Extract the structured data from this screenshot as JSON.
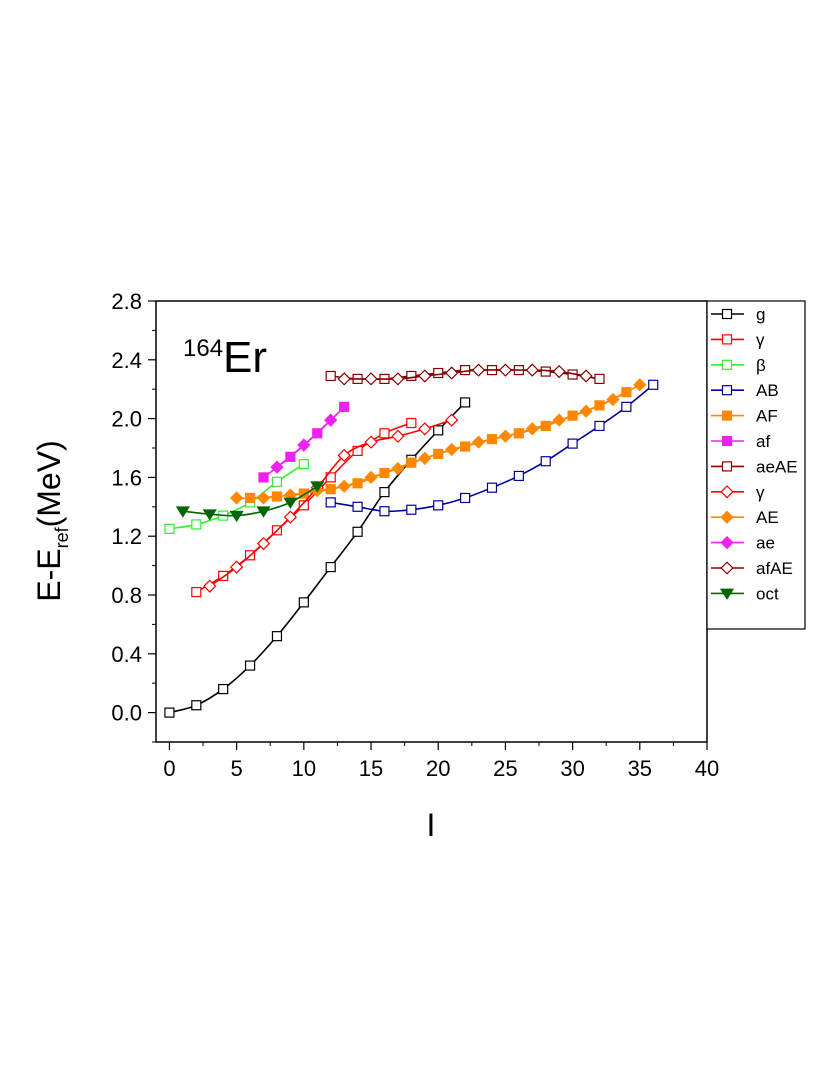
{
  "chart_data": {
    "type": "line",
    "title": "",
    "annotation": {
      "mass": "164",
      "element": "Er"
    },
    "xlabel": "I",
    "ylabel": {
      "main": "E-E",
      "sub": "ref",
      "unit": "(MeV)"
    },
    "xlim": [
      -1,
      40
    ],
    "ylim": [
      -0.2,
      2.8
    ],
    "xticks": [
      0,
      5,
      10,
      15,
      20,
      25,
      30,
      35,
      40
    ],
    "yticks": [
      0.0,
      0.4,
      0.8,
      1.2,
      1.6,
      2.0,
      2.4,
      2.8
    ],
    "xtick_labels": [
      "0",
      "5",
      "10",
      "15",
      "20",
      "25",
      "30",
      "35",
      "40"
    ],
    "ytick_labels": [
      "0.0",
      "0.4",
      "0.8",
      "1.2",
      "1.6",
      "2.0",
      "2.4",
      "2.8"
    ],
    "legend_position": "right",
    "series": [
      {
        "name": "g",
        "color": "#000000",
        "marker": "square-open",
        "x": [
          0,
          2,
          4,
          6,
          8,
          10,
          12,
          14,
          16,
          18,
          20,
          22
        ],
        "y": [
          0.0,
          0.05,
          0.16,
          0.32,
          0.52,
          0.75,
          0.99,
          1.23,
          1.5,
          1.72,
          1.92,
          2.11
        ]
      },
      {
        "name": "γ",
        "color": "#ff0000",
        "marker": "square-open",
        "x": [
          2,
          4,
          6,
          8,
          10,
          12,
          14,
          16,
          18
        ],
        "y": [
          0.82,
          0.93,
          1.07,
          1.24,
          1.41,
          1.6,
          1.78,
          1.9,
          1.97
        ]
      },
      {
        "name": "β",
        "color": "#33ee33",
        "marker": "square-open",
        "x": [
          0,
          2,
          4,
          6,
          8,
          10
        ],
        "y": [
          1.25,
          1.28,
          1.34,
          1.43,
          1.57,
          1.69
        ]
      },
      {
        "name": "AB",
        "color": "#000099",
        "marker": "square-open",
        "x": [
          12,
          14,
          16,
          18,
          20,
          22,
          24,
          26,
          28,
          30,
          32,
          34,
          36
        ],
        "y": [
          1.43,
          1.4,
          1.37,
          1.38,
          1.41,
          1.46,
          1.53,
          1.61,
          1.71,
          1.83,
          1.95,
          2.08,
          2.23
        ]
      },
      {
        "name": "AF",
        "color": "#ff8800",
        "marker": "square-filled",
        "x": [
          6,
          8,
          10,
          12,
          14,
          16,
          18,
          20,
          22,
          24,
          26,
          28,
          30,
          32,
          34
        ],
        "y": [
          1.46,
          1.47,
          1.49,
          1.52,
          1.56,
          1.63,
          1.7,
          1.76,
          1.81,
          1.86,
          1.9,
          1.95,
          2.02,
          2.09,
          2.18
        ]
      },
      {
        "name": "af",
        "color": "#ee22ee",
        "marker": "square-filled",
        "x": [
          7,
          9,
          11,
          13
        ],
        "y": [
          1.6,
          1.74,
          1.9,
          2.08
        ]
      },
      {
        "name": "aeAE",
        "color": "#880000",
        "marker": "square-open",
        "x": [
          12,
          14,
          16,
          18,
          20,
          22,
          24,
          26,
          28,
          30,
          32
        ],
        "y": [
          2.29,
          2.27,
          2.27,
          2.29,
          2.31,
          2.33,
          2.33,
          2.33,
          2.32,
          2.3,
          2.27
        ]
      },
      {
        "name": "γ",
        "color": "#ff0000",
        "marker": "diamond-open",
        "x": [
          3,
          5,
          7,
          9,
          11,
          13,
          15,
          17,
          19,
          21
        ],
        "y": [
          0.86,
          0.99,
          1.15,
          1.33,
          1.53,
          1.75,
          1.84,
          1.88,
          1.93,
          1.99
        ]
      },
      {
        "name": "AE",
        "color": "#ff8800",
        "marker": "diamond-filled",
        "x": [
          5,
          7,
          9,
          11,
          13,
          15,
          17,
          19,
          21,
          23,
          25,
          27,
          29,
          31,
          33,
          35
        ],
        "y": [
          1.46,
          1.46,
          1.48,
          1.51,
          1.54,
          1.6,
          1.66,
          1.73,
          1.79,
          1.84,
          1.88,
          1.93,
          1.99,
          2.05,
          2.13,
          2.23
        ]
      },
      {
        "name": "ae",
        "color": "#ee22ee",
        "marker": "diamond-filled",
        "x": [
          8,
          10,
          12
        ],
        "y": [
          1.67,
          1.82,
          1.99
        ]
      },
      {
        "name": "afAE",
        "color": "#880000",
        "marker": "diamond-open",
        "x": [
          13,
          15,
          17,
          19,
          21,
          23,
          25,
          27,
          29,
          31
        ],
        "y": [
          2.27,
          2.27,
          2.27,
          2.29,
          2.31,
          2.33,
          2.33,
          2.33,
          2.32,
          2.29
        ]
      },
      {
        "name": "oct",
        "color": "#006600",
        "marker": "triangle-down-filled",
        "x": [
          1,
          3,
          5,
          7,
          9,
          11
        ],
        "y": [
          1.37,
          1.35,
          1.34,
          1.37,
          1.43,
          1.54
        ]
      }
    ]
  }
}
